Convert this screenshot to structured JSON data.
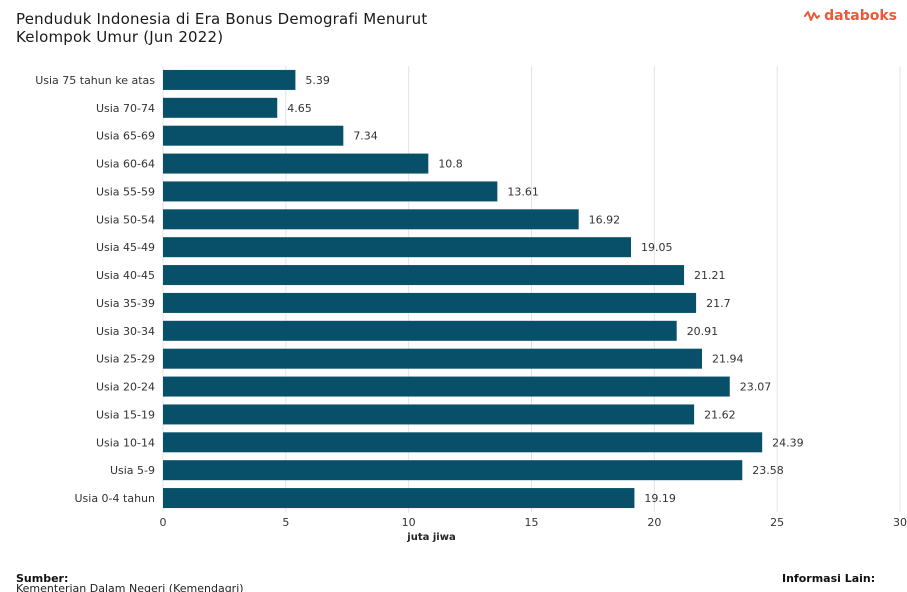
{
  "header": {
    "title_line1": "Penduduk Indonesia di Era Bonus Demografi Menurut",
    "title_line2": "Kelompok Umur (Jun 2022)",
    "logo_text": "databoks"
  },
  "footer": {
    "source_label": "Sumber:",
    "source_text": "Kementerian Dalam Negeri (Kemendagri)",
    "info_label": "Informasi Lain:"
  },
  "colors": {
    "bar": "#08506a",
    "grid": "#e3e3e3",
    "brand": "#e85a3a"
  },
  "chart_data": {
    "type": "bar",
    "orientation": "horizontal",
    "title": "Penduduk Indonesia di Era Bonus Demografi Menurut Kelompok Umur (Jun 2022)",
    "xlabel": "juta jiwa",
    "ylabel": "",
    "xlim": [
      0,
      30
    ],
    "xticks": [
      0,
      5,
      10,
      15,
      20,
      25,
      30
    ],
    "grid": true,
    "categories": [
      "Usia 75 tahun ke atas",
      "Usia 70-74",
      "Usia 65-69",
      "Usia 60-64",
      "Usia 55-59",
      "Usia 50-54",
      "Usia 45-49",
      "Usia 40-45",
      "Usia 35-39",
      "Usia 30-34",
      "Usia 25-29",
      "Usia 20-24",
      "Usia 15-19",
      "Usia 10-14",
      "Usia 5-9",
      "Usia 0-4 tahun"
    ],
    "values": [
      5.39,
      4.65,
      7.34,
      10.8,
      13.61,
      16.92,
      19.05,
      21.21,
      21.7,
      20.91,
      21.94,
      23.07,
      21.62,
      24.39,
      23.58,
      19.19
    ],
    "value_labels": [
      "5.39",
      "4.65",
      "7.34",
      "10.8",
      "13.61",
      "16.92",
      "19.05",
      "21.21",
      "21.7",
      "20.91",
      "21.94",
      "23.07",
      "21.62",
      "24.39",
      "23.58",
      "19.19"
    ]
  }
}
